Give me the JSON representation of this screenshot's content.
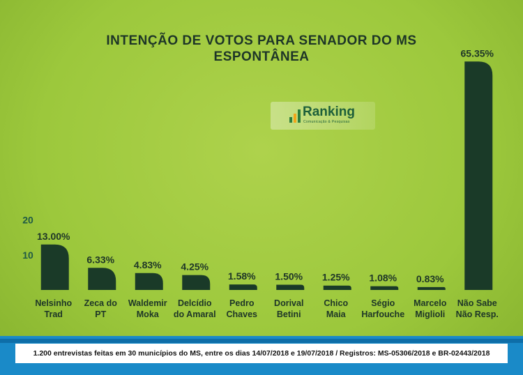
{
  "chart_data": {
    "type": "bar",
    "title": "INTENÇÃO DE VOTOS PARA SENADOR DO MS",
    "subtitle": "ESPONTÂNEA",
    "xlabel": "",
    "ylabel": "",
    "ylim": [
      0,
      67
    ],
    "yticks": [
      10,
      20
    ],
    "grid": false,
    "categories": [
      [
        "Nelsinho",
        "Trad"
      ],
      [
        "Zeca do",
        "PT"
      ],
      [
        "Waldemir",
        "Moka"
      ],
      [
        "Delcídio",
        "do Amaral"
      ],
      [
        "Pedro",
        "Chaves"
      ],
      [
        "Dorival",
        "Betini"
      ],
      [
        "Chico",
        "Maia"
      ],
      [
        "Ségio",
        "Harfouche"
      ],
      [
        "Marcelo",
        "Miglioli"
      ],
      [
        "Não Sabe",
        "Não Resp."
      ]
    ],
    "values": [
      13.0,
      6.33,
      4.83,
      4.25,
      1.58,
      1.5,
      1.25,
      1.08,
      0.83,
      65.35
    ],
    "data_labels": [
      "13.00%",
      "6.33%",
      "4.83%",
      "4.25%",
      "1.58%",
      "1.50%",
      "1.25%",
      "1.08%",
      "0.83%",
      "65.35%"
    ],
    "bar_color": "#1a3a28",
    "label_color": "#1d3527"
  },
  "logo": {
    "name": "Ranking",
    "tagline": "Comunicação & Pesquisas"
  },
  "footer": {
    "text": "1.200 entrevistas feitas em 30 municípios do MS, entre os dias 14/07/2018 e 19/07/2018 / Registros: MS-05306/2018 e BR-02443/2018"
  }
}
